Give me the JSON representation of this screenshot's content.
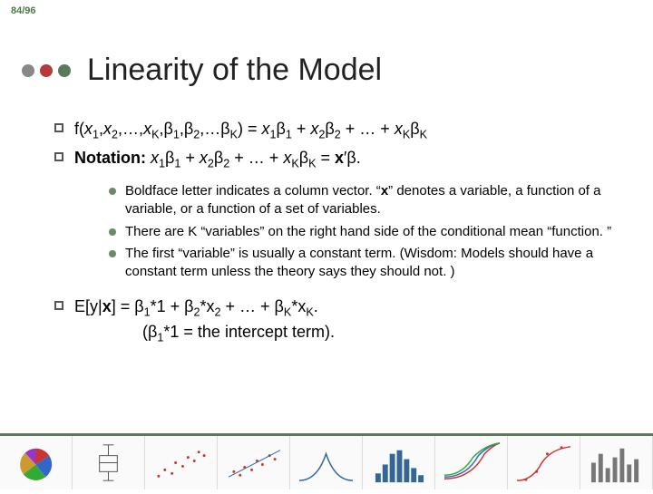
{
  "page_counter": "84/96",
  "dots": [
    "#888888",
    "#b53a3a",
    "#5a7a5a"
  ],
  "title": "Linearity of the Model",
  "line1_html": "f(<span class='italic'>x</span><span class='sub'>1</span>,<span class='italic'>x</span><span class='sub'>2</span>,…,<span class='italic'>x</span><span class='sub'>K</span>,β<span class='sub'>1</span>,β<span class='sub'>2</span>,…β<span class='sub'>K</span>) = <span class='italic'>x</span><span class='sub'>1</span>β<span class='sub'>1</span> + <span class='italic'>x</span><span class='sub'>2</span>β<span class='sub'>2</span> + … + <span class='italic'>x</span><span class='sub'>K</span>β<span class='sub'>K</span>",
  "line2_html": "<span class='bold'>Notation:</span> <span class='italic'>x</span><span class='sub'>1</span>β<span class='sub'>1</span> + <span class='italic'>x</span><span class='sub'>2</span>β<span class='sub'>2</span> + … + <span class='italic'>x</span><span class='sub'>K</span>β<span class='sub'>K</span>  =  <span class='bold'>x</span>′β.",
  "sub1_html": "Boldface letter indicates a column vector.  “<span class='bold'>x</span>” denotes a variable, a function of a variable, or a function of a set of variables.",
  "sub2_html": "There are K “variables” on the right hand side of the conditional mean “function. ”",
  "sub3_html": "The first “variable” is usually a constant term.  (Wisdom: Models should have a constant term unless the theory says they should not. )",
  "line3_html": "E[y|<span class='bold'>x</span>]  =  β<span class='sub'>1</span>*1 + β<span class='sub'>2</span>*x<span class='sub'>2</span> + … + β<span class='sub'>K</span>*x<span class='sub'>K</span>.<br>&nbsp;&nbsp;&nbsp;&nbsp;&nbsp;&nbsp;&nbsp;&nbsp;&nbsp;&nbsp;&nbsp;&nbsp;&nbsp;&nbsp;&nbsp;(β<span class='sub'>1</span>*1 = the intercept term).",
  "thumbs": {
    "pie": {
      "colors": [
        "#cc3333",
        "#3366cc",
        "#33aa33",
        "#cc9933",
        "#9933cc"
      ]
    },
    "box": {
      "stroke": "#555555"
    },
    "scatter": {
      "pts": "#cc3333"
    },
    "scatter2": {
      "pts": "#cc3333"
    },
    "density": {
      "stroke": "#336699"
    },
    "hist": {
      "fill": "#336699"
    },
    "curves": {
      "c1": "#cc3333",
      "c2": "#3366cc",
      "c3": "#33aa33"
    },
    "step": {
      "stroke": "#cc3333"
    },
    "bars": {
      "fill": "#777777"
    }
  }
}
